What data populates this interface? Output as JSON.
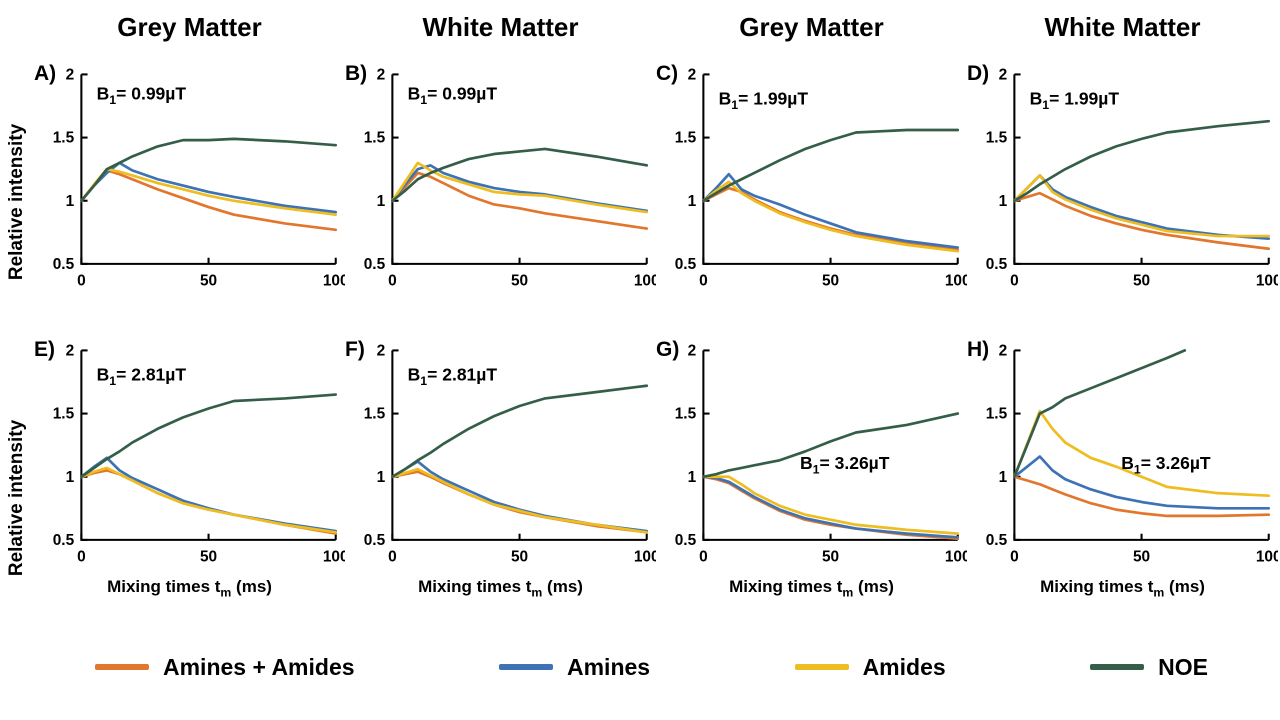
{
  "chart_data": {
    "type": "line",
    "column_titles": [
      "Grey Matter",
      "White Matter",
      "Grey Matter",
      "White Matter"
    ],
    "ylabel": "Relative intensity",
    "xlabel": {
      "prefix": "Mixing times t",
      "sub": "m",
      "suffix": " (ms)"
    },
    "xlim": [
      0,
      100
    ],
    "ylim": [
      0.5,
      2
    ],
    "xticks": [
      0,
      50,
      100
    ],
    "yticks": [
      0.5,
      1,
      1.5,
      2
    ],
    "ytick_labels": [
      "0.5",
      "1",
      "1.5",
      "2"
    ],
    "grid": false,
    "legend_position": "bottom",
    "legend": [
      {
        "label": "Amines + Amides",
        "color": "#e2762d"
      },
      {
        "label": "Amines",
        "color": "#3d72b4"
      },
      {
        "label": "Amides",
        "color": "#eebd20"
      },
      {
        "label": "NOE",
        "color": "#355e48"
      }
    ],
    "panels": [
      {
        "label": "A)",
        "matter": "Grey Matter",
        "b1": {
          "prefix": "B",
          "sub": "1",
          "text": "= 0.99µT"
        },
        "b1_pos": {
          "x": 6,
          "y": 1.8
        },
        "x": [
          0,
          5,
          10,
          15,
          20,
          30,
          40,
          50,
          60,
          80,
          100
        ],
        "series": [
          {
            "name": "Amines + Amides",
            "color": "#e2762d",
            "values": [
              1.0,
              1.12,
              1.24,
              1.21,
              1.17,
              1.09,
              1.02,
              0.95,
              0.89,
              0.82,
              0.77
            ]
          },
          {
            "name": "Amines",
            "color": "#3d72b4",
            "values": [
              1.0,
              1.12,
              1.22,
              1.3,
              1.24,
              1.17,
              1.12,
              1.07,
              1.03,
              0.96,
              0.91
            ]
          },
          {
            "name": "Amides",
            "color": "#eebd20",
            "values": [
              1.0,
              1.13,
              1.25,
              1.23,
              1.2,
              1.14,
              1.09,
              1.04,
              1.0,
              0.94,
              0.89
            ]
          },
          {
            "name": "NOE",
            "color": "#355e48",
            "values": [
              1.0,
              1.12,
              1.25,
              1.3,
              1.35,
              1.43,
              1.48,
              1.48,
              1.49,
              1.47,
              1.44
            ]
          }
        ]
      },
      {
        "label": "B)",
        "matter": "White Matter",
        "b1": {
          "prefix": "B",
          "sub": "1",
          "text": "= 0.99µT"
        },
        "b1_pos": {
          "x": 6,
          "y": 1.8
        },
        "x": [
          0,
          5,
          10,
          15,
          20,
          30,
          40,
          50,
          60,
          80,
          100
        ],
        "series": [
          {
            "name": "Amines + Amides",
            "color": "#e2762d",
            "values": [
              1.0,
              1.11,
              1.22,
              1.19,
              1.14,
              1.04,
              0.97,
              0.94,
              0.9,
              0.84,
              0.78
            ]
          },
          {
            "name": "Amines",
            "color": "#3d72b4",
            "values": [
              1.0,
              1.13,
              1.25,
              1.28,
              1.22,
              1.15,
              1.1,
              1.07,
              1.05,
              0.98,
              0.92
            ]
          },
          {
            "name": "Amides",
            "color": "#eebd20",
            "values": [
              1.0,
              1.15,
              1.3,
              1.24,
              1.19,
              1.13,
              1.07,
              1.05,
              1.04,
              0.97,
              0.91
            ]
          },
          {
            "name": "NOE",
            "color": "#355e48",
            "values": [
              1.0,
              1.08,
              1.17,
              1.22,
              1.26,
              1.33,
              1.37,
              1.39,
              1.41,
              1.35,
              1.28
            ]
          }
        ]
      },
      {
        "label": "C)",
        "matter": "Grey Matter",
        "b1": {
          "prefix": "B",
          "sub": "1",
          "text": "= 1.99µT"
        },
        "b1_pos": {
          "x": 6,
          "y": 1.76
        },
        "x": [
          0,
          5,
          10,
          15,
          20,
          30,
          40,
          50,
          60,
          80,
          100
        ],
        "series": [
          {
            "name": "Amines + Amides",
            "color": "#e2762d",
            "values": [
              1.0,
              1.05,
              1.1,
              1.07,
              1.01,
              0.91,
              0.84,
              0.78,
              0.73,
              0.67,
              0.61
            ]
          },
          {
            "name": "Amines",
            "color": "#3d72b4",
            "values": [
              1.0,
              1.1,
              1.21,
              1.09,
              1.04,
              0.97,
              0.89,
              0.82,
              0.75,
              0.68,
              0.63
            ]
          },
          {
            "name": "Amides",
            "color": "#eebd20",
            "values": [
              1.0,
              1.08,
              1.15,
              1.06,
              1.0,
              0.9,
              0.83,
              0.77,
              0.72,
              0.65,
              0.6
            ]
          },
          {
            "name": "NOE",
            "color": "#355e48",
            "values": [
              1.0,
              1.06,
              1.12,
              1.17,
              1.22,
              1.32,
              1.41,
              1.48,
              1.54,
              1.56,
              1.56
            ]
          }
        ]
      },
      {
        "label": "D)",
        "matter": "White Matter",
        "b1": {
          "prefix": "B",
          "sub": "1",
          "text": "= 1.99µT"
        },
        "b1_pos": {
          "x": 6,
          "y": 1.76
        },
        "x": [
          0,
          5,
          10,
          15,
          20,
          30,
          40,
          50,
          60,
          80,
          100
        ],
        "series": [
          {
            "name": "Amines + Amides",
            "color": "#e2762d",
            "values": [
              1.0,
              1.03,
              1.06,
              1.01,
              0.96,
              0.88,
              0.82,
              0.77,
              0.73,
              0.67,
              0.62
            ]
          },
          {
            "name": "Amines",
            "color": "#3d72b4",
            "values": [
              1.0,
              1.1,
              1.2,
              1.09,
              1.03,
              0.95,
              0.88,
              0.83,
              0.78,
              0.73,
              0.7
            ]
          },
          {
            "name": "Amides",
            "color": "#eebd20",
            "values": [
              1.0,
              1.1,
              1.2,
              1.07,
              1.01,
              0.93,
              0.86,
              0.81,
              0.76,
              0.72,
              0.72
            ]
          },
          {
            "name": "NOE",
            "color": "#355e48",
            "values": [
              1.0,
              1.06,
              1.13,
              1.19,
              1.25,
              1.35,
              1.43,
              1.49,
              1.54,
              1.59,
              1.63
            ]
          }
        ]
      },
      {
        "label": "E)",
        "matter": "Grey Matter",
        "b1": {
          "prefix": "B",
          "sub": "1",
          "text": "= 2.81µT"
        },
        "b1_pos": {
          "x": 6,
          "y": 1.76
        },
        "x": [
          0,
          5,
          10,
          15,
          20,
          30,
          40,
          50,
          60,
          80,
          100
        ],
        "series": [
          {
            "name": "Amines + Amides",
            "color": "#e2762d",
            "values": [
              1.0,
              1.03,
              1.05,
              1.02,
              0.97,
              0.87,
              0.79,
              0.74,
              0.7,
              0.62,
              0.55
            ]
          },
          {
            "name": "Amines",
            "color": "#3d72b4",
            "values": [
              1.0,
              1.08,
              1.15,
              1.05,
              0.99,
              0.9,
              0.81,
              0.75,
              0.7,
              0.63,
              0.57
            ]
          },
          {
            "name": "Amides",
            "color": "#eebd20",
            "values": [
              1.0,
              1.04,
              1.07,
              1.02,
              0.97,
              0.87,
              0.79,
              0.74,
              0.7,
              0.62,
              0.56
            ]
          },
          {
            "name": "NOE",
            "color": "#355e48",
            "values": [
              1.0,
              1.07,
              1.14,
              1.2,
              1.27,
              1.38,
              1.47,
              1.54,
              1.6,
              1.62,
              1.65
            ]
          }
        ]
      },
      {
        "label": "F)",
        "matter": "White Matter",
        "b1": {
          "prefix": "B",
          "sub": "1",
          "text": "= 2.81µT"
        },
        "b1_pos": {
          "x": 6,
          "y": 1.76
        },
        "x": [
          0,
          5,
          10,
          15,
          20,
          30,
          40,
          50,
          60,
          80,
          100
        ],
        "series": [
          {
            "name": "Amines + Amides",
            "color": "#e2762d",
            "values": [
              1.0,
              1.02,
              1.04,
              1.0,
              0.95,
              0.86,
              0.78,
              0.72,
              0.68,
              0.61,
              0.56
            ]
          },
          {
            "name": "Amines",
            "color": "#3d72b4",
            "values": [
              1.0,
              1.06,
              1.12,
              1.04,
              0.98,
              0.89,
              0.8,
              0.74,
              0.69,
              0.62,
              0.57
            ]
          },
          {
            "name": "Amides",
            "color": "#eebd20",
            "values": [
              1.0,
              1.03,
              1.06,
              1.01,
              0.96,
              0.86,
              0.78,
              0.73,
              0.68,
              0.62,
              0.56
            ]
          },
          {
            "name": "NOE",
            "color": "#355e48",
            "values": [
              1.0,
              1.06,
              1.13,
              1.19,
              1.26,
              1.38,
              1.48,
              1.56,
              1.62,
              1.67,
              1.72
            ]
          }
        ]
      },
      {
        "label": "G)",
        "matter": "Grey Matter",
        "b1": {
          "prefix": "B",
          "sub": "1",
          "text": "= 3.26µT"
        },
        "b1_pos": {
          "x": 38,
          "y": 1.06
        },
        "x": [
          0,
          5,
          10,
          15,
          20,
          30,
          40,
          50,
          60,
          80,
          100
        ],
        "series": [
          {
            "name": "Amines + Amides",
            "color": "#e2762d",
            "values": [
              1.0,
              0.98,
              0.95,
              0.89,
              0.83,
              0.73,
              0.66,
              0.62,
              0.59,
              0.54,
              0.51
            ]
          },
          {
            "name": "Amines",
            "color": "#3d72b4",
            "values": [
              1.0,
              0.99,
              0.96,
              0.9,
              0.84,
              0.74,
              0.67,
              0.63,
              0.59,
              0.55,
              0.52
            ]
          },
          {
            "name": "Amides",
            "color": "#eebd20",
            "values": [
              1.0,
              1.0,
              1.0,
              0.94,
              0.87,
              0.77,
              0.7,
              0.66,
              0.62,
              0.58,
              0.55
            ]
          },
          {
            "name": "NOE",
            "color": "#355e48",
            "values": [
              1.0,
              1.02,
              1.05,
              1.07,
              1.09,
              1.13,
              1.2,
              1.28,
              1.35,
              1.41,
              1.5
            ]
          }
        ]
      },
      {
        "label": "H)",
        "matter": "White Matter",
        "b1": {
          "prefix": "B",
          "sub": "1",
          "text": "= 3.26µT"
        },
        "b1_pos": {
          "x": 42,
          "y": 1.06
        },
        "x": [
          0,
          5,
          10,
          15,
          20,
          30,
          40,
          50,
          60,
          80,
          100
        ],
        "series": [
          {
            "name": "Amines + Amides",
            "color": "#e2762d",
            "values": [
              1.0,
              0.97,
              0.94,
              0.9,
              0.86,
              0.79,
              0.74,
              0.71,
              0.69,
              0.69,
              0.7
            ]
          },
          {
            "name": "Amines",
            "color": "#3d72b4",
            "values": [
              1.0,
              1.08,
              1.16,
              1.05,
              0.98,
              0.9,
              0.84,
              0.8,
              0.77,
              0.75,
              0.75
            ]
          },
          {
            "name": "Amides",
            "color": "#eebd20",
            "values": [
              1.0,
              1.26,
              1.52,
              1.38,
              1.27,
              1.15,
              1.08,
              1.0,
              0.92,
              0.87,
              0.85
            ]
          },
          {
            "name": "NOE",
            "color": "#355e48",
            "x": [
              0,
              5,
              10,
              15,
              20,
              30,
              40,
              50,
              60,
              67
            ],
            "values": [
              1.0,
              1.25,
              1.5,
              1.55,
              1.62,
              1.7,
              1.78,
              1.86,
              1.94,
              2.0
            ]
          }
        ]
      }
    ]
  }
}
